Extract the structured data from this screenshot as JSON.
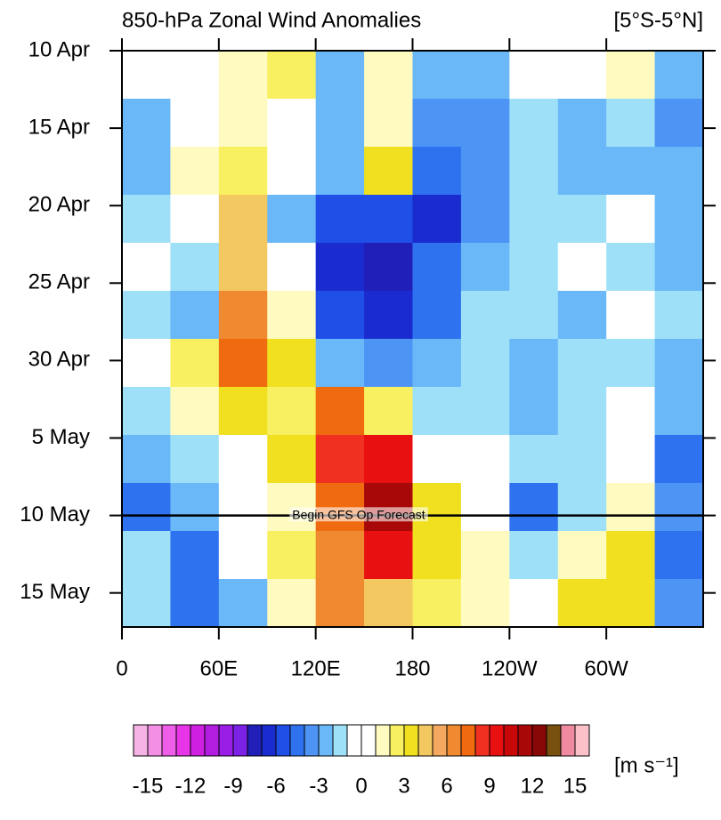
{
  "chart_data": {
    "type": "hovmoller",
    "title": "850-hPa Zonal Wind Anomalies",
    "subtitle": "[5°S-5°N]",
    "x": [
      15,
      45,
      75,
      105,
      135,
      165,
      195,
      225,
      255,
      285,
      315,
      345
    ],
    "y": [
      1.55,
      4.65,
      7.75,
      10.85,
      13.95,
      17.05,
      20.15,
      23.25,
      26.35,
      29.45,
      32.55,
      35.65
    ],
    "z": [
      [
        -1,
        0,
        1,
        2,
        -3,
        1,
        -3,
        -3,
        -1,
        -1,
        1,
        -3
      ],
      [
        -3,
        -1,
        1,
        0,
        -3,
        1,
        -4,
        -4,
        -2,
        -3,
        -2,
        -4
      ],
      [
        -3,
        1,
        2,
        -1,
        -3,
        3,
        -5,
        -4,
        -2,
        -3,
        -3,
        -3
      ],
      [
        -2,
        0,
        4,
        -3,
        -6,
        -6,
        -7,
        -4,
        -2,
        -2,
        -1,
        -3
      ],
      [
        -1,
        -2,
        4,
        -1,
        -7,
        -8,
        -5,
        -3,
        -2,
        -1,
        -2,
        -3
      ],
      [
        -2,
        -3,
        6,
        1,
        -6,
        -7,
        -5,
        -2,
        -2,
        -3,
        -1,
        -2
      ],
      [
        -1,
        2,
        7,
        3,
        -3,
        -4,
        -3,
        -2,
        -3,
        -2,
        -2,
        -3
      ],
      [
        -2,
        1,
        3,
        2,
        7,
        2,
        -2,
        -2,
        -3,
        -2,
        -1,
        -3
      ],
      [
        -3,
        -2,
        -1,
        3,
        8,
        9,
        -1,
        -1,
        -2,
        -2,
        0,
        -5
      ],
      [
        -5,
        -3,
        -1,
        1,
        7,
        11,
        3,
        -1,
        -5,
        -2,
        1,
        -4
      ],
      [
        -2,
        -5,
        -1,
        2,
        6,
        9,
        3,
        1,
        -2,
        1,
        3,
        -5
      ],
      [
        -2,
        -5,
        -3,
        1,
        6,
        4,
        2,
        1,
        0,
        3,
        3,
        -4
      ]
    ],
    "xlim": [
      0,
      360
    ],
    "xticks": [
      0,
      {
        "value": 60,
        "label": "60E"
      },
      {
        "value": 120,
        "label": "120E"
      },
      180,
      {
        "value": 240,
        "label": "120W"
      },
      {
        "value": 300,
        "label": "60W"
      }
    ],
    "ylim": [
      0,
      37.2
    ],
    "yticks": [
      {
        "value": 0,
        "label": "10 Apr"
      },
      {
        "value": 5,
        "label": "15 Apr"
      },
      {
        "value": 10,
        "label": "20 Apr"
      },
      {
        "value": 15,
        "label": "25 Apr"
      },
      {
        "value": 20,
        "label": "30 Apr"
      },
      {
        "value": 25,
        "label": "5 May"
      },
      {
        "value": 30,
        "label": "10 May"
      },
      {
        "value": 35,
        "label": "15 May"
      }
    ],
    "annotation": {
      "text": "Begin GFS Op Forecast",
      "y": 30
    },
    "colorbar": {
      "label": "[m s⁻¹]",
      "clim": [
        -16,
        16
      ],
      "ticks": [
        -15,
        -12,
        -9,
        -6,
        -3,
        0,
        3,
        6,
        9,
        12,
        15
      ],
      "colors": [
        "#f6b4e6",
        "#f48fe6",
        "#ef5ee8",
        "#e634e6",
        "#cf1fe0",
        "#b21ee0",
        "#9a1ee6",
        "#7c22e6",
        "#2020b8",
        "#1a2cd0",
        "#1f4fe6",
        "#2f72f0",
        "#4d94f5",
        "#6ab8f8",
        "#9ee0f8",
        "#ffffff",
        "#ffffff",
        "#fffac0",
        "#f8f060",
        "#f0e020",
        "#f4c860",
        "#f4a860",
        "#f08a30",
        "#f06a10",
        "#f03020",
        "#e81010",
        "#c80808",
        "#a80808",
        "#880808",
        "#785010",
        "#f08aa0",
        "#fcc0c8"
      ]
    }
  }
}
